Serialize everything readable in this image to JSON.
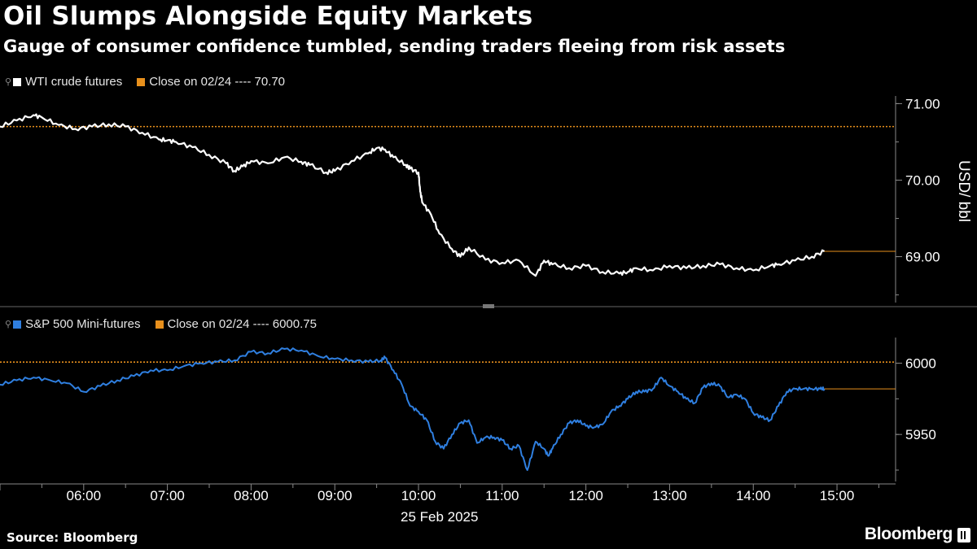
{
  "header": {
    "title": "Oil Slumps Alongside Equity Markets",
    "subtitle": "Gauge of consumer confidence tumbled, sending traders fleeing from risk assets"
  },
  "footer": {
    "source": "Source: Bloomberg",
    "brand": "Bloomberg"
  },
  "colors": {
    "background": "#000000",
    "oil_line": "#ffffff",
    "spx_line": "#2f7fe0",
    "reference": "#e8901c",
    "axis": "#888888"
  },
  "chart_data": [
    {
      "type": "line",
      "panel": "top",
      "ylabel": "USD/ bbl",
      "ylim": [
        68.4,
        71.1
      ],
      "yticks": [
        71.0,
        70.0,
        69.0
      ],
      "ytick_labels": [
        "71.00",
        "70.00",
        "69.00"
      ],
      "legend": [
        {
          "label": "WTI crude futures",
          "color": "#ffffff"
        },
        {
          "label": "Close on 02/24 ---- 70.70",
          "color": "#e8901c"
        }
      ],
      "reference": {
        "label": "Close on 02/24",
        "value": 70.7
      },
      "last_value": 69.07,
      "series": [
        {
          "name": "WTI crude futures",
          "x": [
            5.0,
            5.2,
            5.4,
            5.5,
            5.7,
            5.9,
            6.1,
            6.3,
            6.5,
            6.7,
            6.9,
            7.0,
            7.1,
            7.3,
            7.5,
            7.7,
            7.8,
            7.9,
            8.0,
            8.2,
            8.4,
            8.6,
            8.7,
            8.9,
            9.0,
            9.2,
            9.4,
            9.5,
            9.6,
            9.7,
            9.85,
            9.9,
            10.0,
            10.02,
            10.05,
            10.15,
            10.25,
            10.4,
            10.5,
            10.6,
            10.8,
            11.0,
            11.2,
            11.4,
            11.5,
            11.6,
            11.8,
            12.0,
            12.2,
            12.4,
            12.5,
            12.6,
            12.8,
            13.0,
            13.2,
            13.4,
            13.6,
            13.8,
            14.0,
            14.2,
            14.3,
            14.5,
            14.7,
            14.85
          ],
          "values": [
            70.7,
            70.78,
            70.85,
            70.82,
            70.72,
            70.67,
            70.7,
            70.73,
            70.7,
            70.62,
            70.53,
            70.52,
            70.5,
            70.43,
            70.33,
            70.22,
            70.12,
            70.18,
            70.25,
            70.22,
            70.3,
            70.24,
            70.2,
            70.1,
            70.12,
            70.25,
            70.35,
            70.42,
            70.4,
            70.3,
            70.2,
            70.15,
            70.1,
            69.85,
            69.7,
            69.55,
            69.3,
            69.1,
            69.0,
            69.12,
            68.96,
            68.92,
            68.95,
            68.75,
            68.95,
            68.9,
            68.85,
            68.88,
            68.8,
            68.78,
            68.8,
            68.85,
            68.82,
            68.88,
            68.85,
            68.88,
            68.9,
            68.85,
            68.82,
            68.88,
            68.9,
            68.95,
            69.0,
            69.07
          ]
        }
      ]
    },
    {
      "type": "line",
      "panel": "bottom",
      "ylabel": "",
      "ylim": [
        5917,
        6018
      ],
      "yticks": [
        6000,
        5950
      ],
      "ytick_labels": [
        "6000",
        "5950"
      ],
      "legend": [
        {
          "label": "S&P 500 Mini-futures",
          "color": "#2f7fe0"
        },
        {
          "label": "Close on 02/24 ---- 6000.75",
          "color": "#e8901c"
        }
      ],
      "reference": {
        "label": "Close on 02/24",
        "value": 6000.75
      },
      "last_value": 5982,
      "series": [
        {
          "name": "S&P 500 Mini-futures",
          "x": [
            5.0,
            5.2,
            5.4,
            5.6,
            5.8,
            6.0,
            6.2,
            6.4,
            6.6,
            6.8,
            7.0,
            7.2,
            7.4,
            7.6,
            7.8,
            8.0,
            8.2,
            8.4,
            8.6,
            8.8,
            9.0,
            9.2,
            9.4,
            9.55,
            9.6,
            9.7,
            9.8,
            9.9,
            10.0,
            10.1,
            10.2,
            10.3,
            10.4,
            10.5,
            10.6,
            10.7,
            10.8,
            10.9,
            11.0,
            11.1,
            11.2,
            11.3,
            11.4,
            11.5,
            11.55,
            11.6,
            11.7,
            11.8,
            11.9,
            12.0,
            12.1,
            12.2,
            12.3,
            12.4,
            12.5,
            12.6,
            12.7,
            12.8,
            12.9,
            13.0,
            13.1,
            13.2,
            13.3,
            13.4,
            13.5,
            13.6,
            13.7,
            13.8,
            13.9,
            14.0,
            14.1,
            14.2,
            14.3,
            14.4,
            14.5,
            14.6,
            14.7,
            14.8,
            14.85
          ],
          "values": [
            5985,
            5988,
            5990,
            5988,
            5986,
            5980,
            5984,
            5988,
            5991,
            5995,
            5995,
            5998,
            6000,
            6001,
            6002,
            6008,
            6007,
            6010,
            6009,
            6005,
            6003,
            6002,
            6001,
            6002,
            6004,
            5995,
            5985,
            5970,
            5966,
            5960,
            5945,
            5940,
            5950,
            5958,
            5960,
            5944,
            5948,
            5948,
            5946,
            5940,
            5942,
            5925,
            5945,
            5940,
            5935,
            5940,
            5950,
            5958,
            5960,
            5956,
            5955,
            5957,
            5966,
            5970,
            5975,
            5980,
            5980,
            5982,
            5990,
            5984,
            5980,
            5975,
            5972,
            5983,
            5986,
            5984,
            5976,
            5978,
            5975,
            5965,
            5962,
            5960,
            5970,
            5980,
            5982,
            5982,
            5982,
            5982,
            5982
          ]
        }
      ]
    }
  ],
  "x_axis": {
    "tick_labels": [
      "06:00",
      "07:00",
      "08:00",
      "09:00",
      "10:00",
      "11:00",
      "12:00",
      "13:00",
      "14:00",
      "15:00"
    ],
    "tick_hours": [
      6,
      7,
      8,
      9,
      10,
      11,
      12,
      13,
      14,
      15
    ],
    "date_label": "25 Feb 2025",
    "range_hours": [
      5.0,
      15.7
    ]
  }
}
